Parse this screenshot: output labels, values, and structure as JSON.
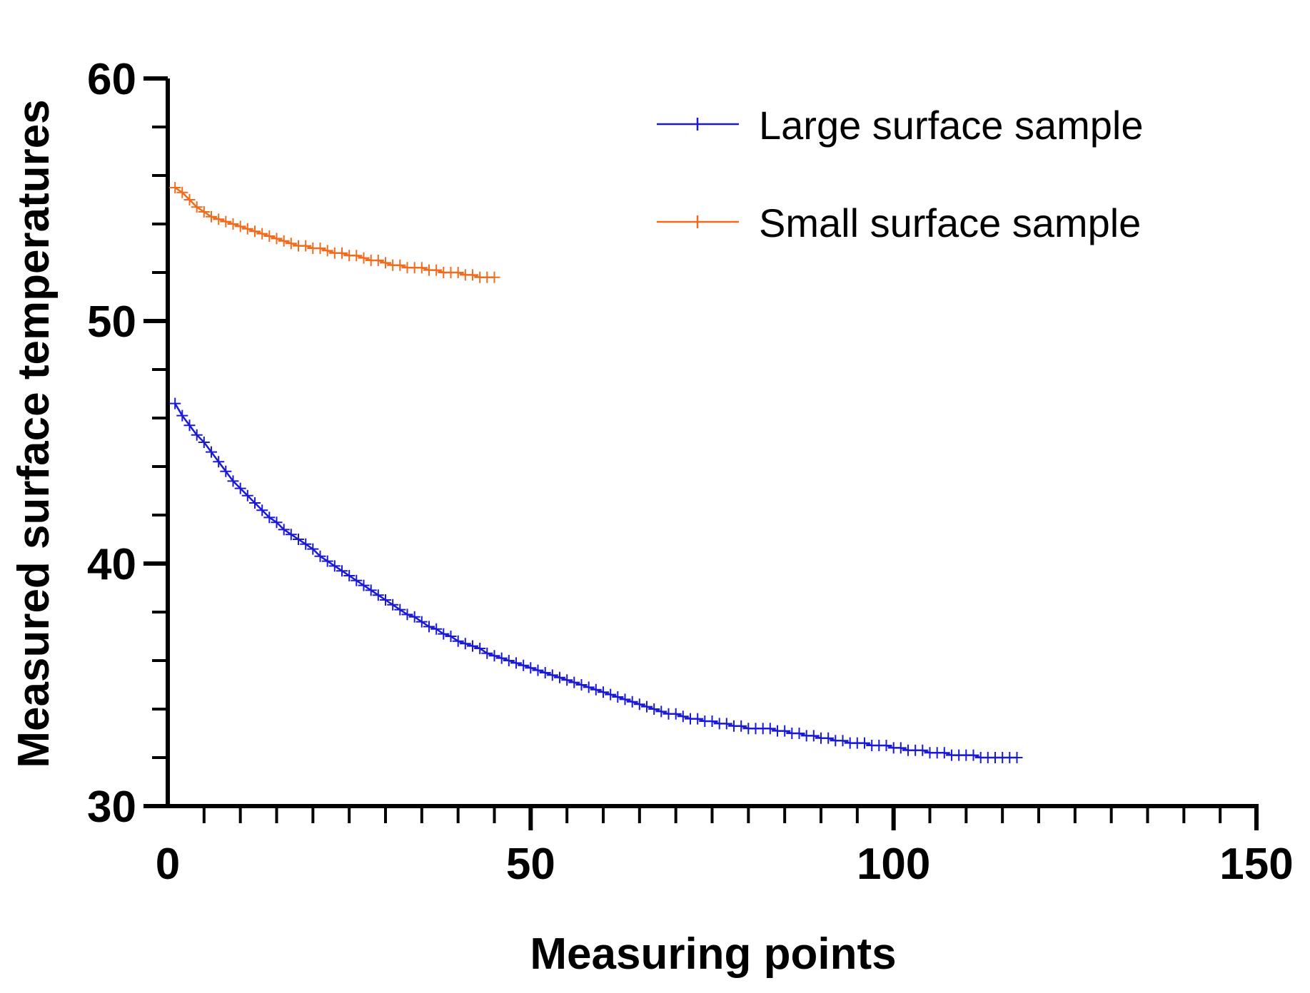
{
  "chart_data": {
    "type": "line",
    "title": "",
    "xlabel": "Measuring points",
    "ylabel": "Measured surface temperatures",
    "xlim": [
      0,
      150
    ],
    "ylim": [
      30,
      60
    ],
    "x_ticks": [
      0,
      50,
      100,
      150
    ],
    "x_tick_labels": [
      "0",
      "50",
      "100",
      "150"
    ],
    "x_minor_step": 5,
    "y_ticks": [
      30,
      40,
      50,
      60
    ],
    "y_tick_labels": [
      "30",
      "40",
      "50",
      "60"
    ],
    "y_minor_step": 2,
    "grid": false,
    "legend_position": "top-right",
    "series": [
      {
        "name": "Large surface sample",
        "color": "#1a1ad6",
        "marker": "plus",
        "x_start": 1,
        "x_step": 1,
        "values": [
          46.6,
          46.1,
          45.7,
          45.3,
          45.0,
          44.6,
          44.2,
          43.8,
          43.4,
          43.1,
          42.8,
          42.5,
          42.2,
          41.9,
          41.7,
          41.4,
          41.2,
          41.0,
          40.8,
          40.6,
          40.3,
          40.1,
          39.9,
          39.7,
          39.5,
          39.3,
          39.1,
          38.9,
          38.7,
          38.5,
          38.3,
          38.1,
          37.9,
          37.8,
          37.6,
          37.4,
          37.3,
          37.1,
          37.0,
          36.8,
          36.7,
          36.6,
          36.5,
          36.3,
          36.2,
          36.1,
          36.0,
          35.9,
          35.8,
          35.7,
          35.6,
          35.5,
          35.4,
          35.3,
          35.2,
          35.1,
          35.0,
          34.9,
          34.8,
          34.7,
          34.6,
          34.5,
          34.4,
          34.3,
          34.2,
          34.1,
          34.0,
          33.9,
          33.8,
          33.8,
          33.7,
          33.6,
          33.6,
          33.5,
          33.5,
          33.4,
          33.4,
          33.3,
          33.3,
          33.2,
          33.2,
          33.2,
          33.2,
          33.1,
          33.1,
          33.0,
          33.0,
          32.9,
          32.9,
          32.8,
          32.8,
          32.7,
          32.7,
          32.6,
          32.6,
          32.6,
          32.5,
          32.5,
          32.5,
          32.4,
          32.4,
          32.3,
          32.3,
          32.3,
          32.2,
          32.2,
          32.2,
          32.1,
          32.1,
          32.1,
          32.1,
          32.0,
          32.0,
          32.0,
          32.0,
          32.0,
          32.0
        ]
      },
      {
        "name": "Small surface sample",
        "color": "#f26b1d",
        "marker": "plus",
        "x_start": 1,
        "x_step": 1,
        "values": [
          55.5,
          55.3,
          55.0,
          54.7,
          54.5,
          54.3,
          54.2,
          54.1,
          54.0,
          53.9,
          53.8,
          53.7,
          53.6,
          53.5,
          53.4,
          53.3,
          53.2,
          53.1,
          53.1,
          53.0,
          53.0,
          52.9,
          52.8,
          52.8,
          52.7,
          52.7,
          52.6,
          52.5,
          52.5,
          52.4,
          52.3,
          52.3,
          52.2,
          52.2,
          52.2,
          52.1,
          52.1,
          52.0,
          52.0,
          52.0,
          51.9,
          51.9,
          51.8,
          51.8,
          51.8
        ]
      }
    ]
  }
}
